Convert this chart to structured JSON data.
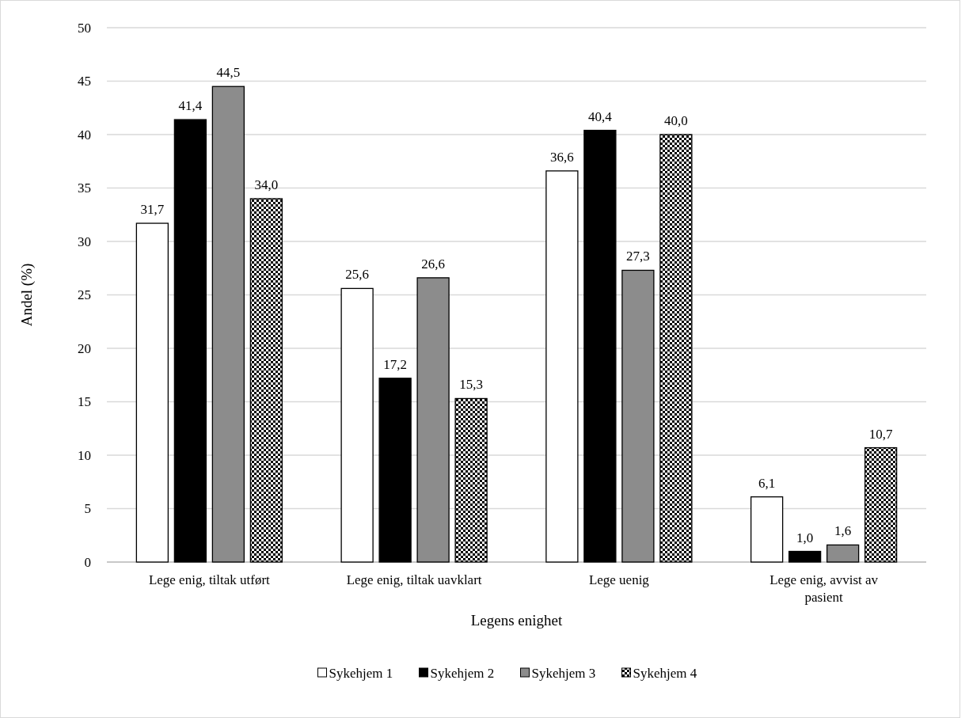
{
  "chart_data": {
    "type": "bar",
    "xlabel": "Legens enighet",
    "ylabel": "Andel (%)",
    "categories": [
      "Lege enig, tiltak utført",
      "Lege enig, tiltak uavklart",
      "Lege uenig",
      "Lege enig, avvist av pasient"
    ],
    "series": [
      {
        "name": "Sykehjem 1",
        "color": "#ffffff",
        "values": [
          31.7,
          25.6,
          36.6,
          6.1
        ],
        "value_labels": [
          "31,7",
          "25,6",
          "36,6",
          "6,1"
        ]
      },
      {
        "name": "Sykehjem 2",
        "color": "#000000",
        "values": [
          41.4,
          17.2,
          40.4,
          1.0
        ],
        "value_labels": [
          "41,4",
          "17,2",
          "40,4",
          "1,0"
        ]
      },
      {
        "name": "Sykehjem 3",
        "color": "#8c8c8c",
        "values": [
          44.5,
          26.6,
          27.3,
          1.6
        ],
        "value_labels": [
          "44,5",
          "26,6",
          "27,3",
          "1,6"
        ]
      },
      {
        "name": "Sykehjem 4",
        "color": "#000000",
        "values": [
          34.0,
          15.3,
          40.0,
          10.7
        ],
        "value_labels": [
          "34,0",
          "15,3",
          "40,0",
          "10,7"
        ]
      }
    ],
    "ylim": [
      0,
      50
    ],
    "yticks": [
      0,
      5,
      10,
      15,
      20,
      25,
      30,
      35,
      40,
      45,
      50
    ],
    "grid": "y",
    "legend": "bottom"
  }
}
